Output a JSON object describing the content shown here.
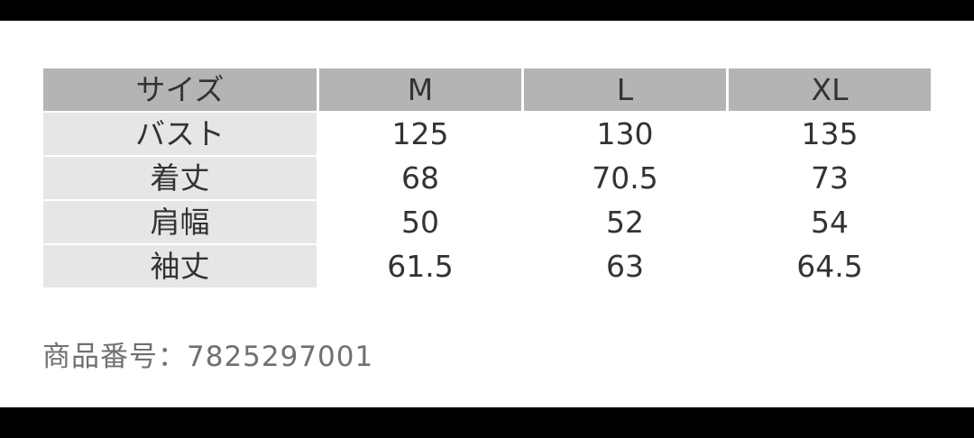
{
  "table": {
    "header": [
      "サイズ",
      "M",
      "L",
      "XL"
    ],
    "rows": [
      [
        "バスト",
        "125",
        "130",
        "135"
      ],
      [
        "着丈",
        "68",
        "70.5",
        "73"
      ],
      [
        "肩幅",
        "50",
        "52",
        "54"
      ],
      [
        "袖丈",
        "61.5",
        "63",
        "64.5"
      ]
    ]
  },
  "footer": {
    "label": "商品番号：",
    "number": "7825297001"
  },
  "colors": {
    "header_bg": "#b4b4b4",
    "label_bg": "#e6e6e6",
    "frame": "#000000"
  }
}
